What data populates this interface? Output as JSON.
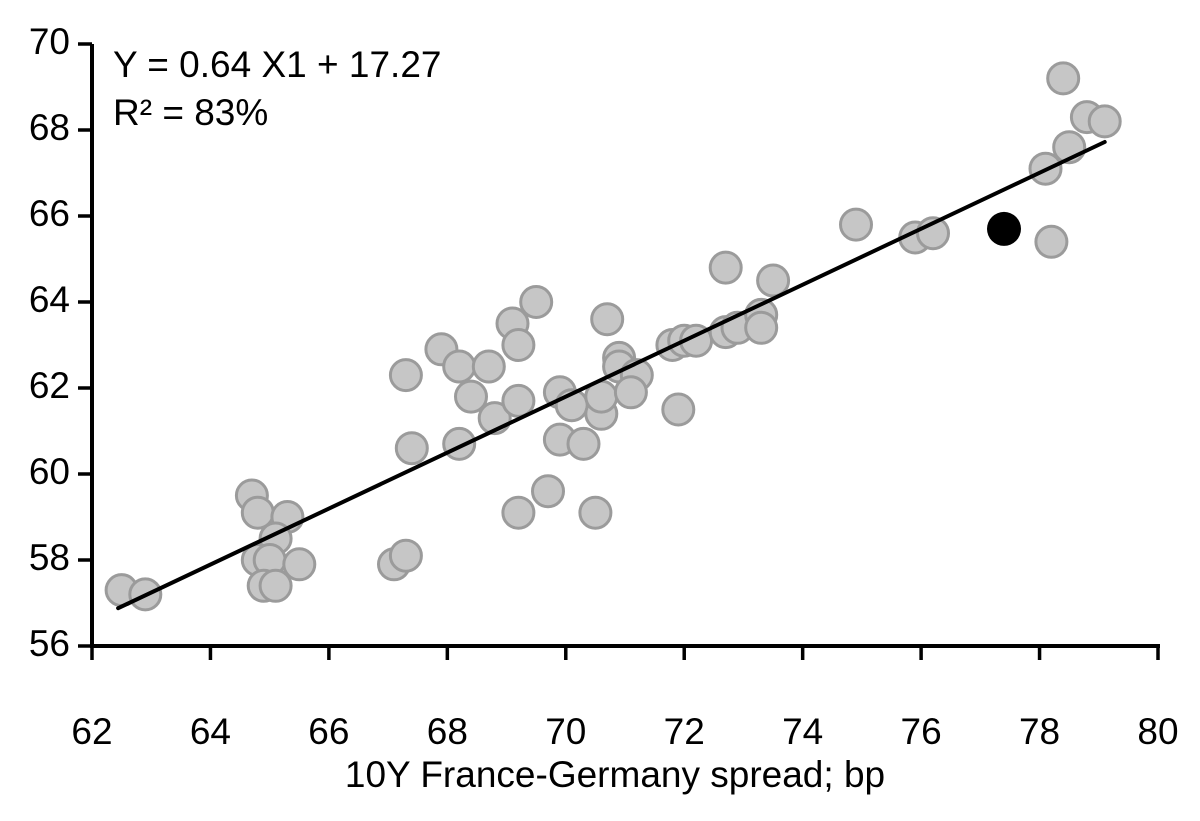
{
  "colors": {
    "background": "#ffffff",
    "axis": "#000000",
    "text": "#000000",
    "trendline": "#000000",
    "point_fill": "#c6c6c6",
    "point_edge": "#9b9b9b",
    "highlight_point": "#000000"
  },
  "chart_data": {
    "type": "scatter",
    "title": "",
    "xlabel": "10Y France-Germany spread; bp",
    "ylabel": "",
    "xlim": [
      62,
      80
    ],
    "ylim": [
      56,
      70
    ],
    "xticks": [
      62,
      64,
      66,
      68,
      70,
      72,
      74,
      76,
      78,
      80
    ],
    "yticks": [
      56,
      58,
      60,
      62,
      64,
      66,
      68,
      70
    ],
    "grid": false,
    "legend": "none",
    "annotation_line1": "Y = 0.64 X1 + 17.27",
    "annotation_line2": "R² = 83%",
    "regression": {
      "equation": "Y = 0.64 X1 + 17.27",
      "slope": 0.64,
      "intercept": 17.27,
      "r_squared_pct": 83
    },
    "trendline_draw": {
      "x1": 62.44,
      "y1": 56.88,
      "x2": 79.1,
      "y2": 67.72
    },
    "series": [
      {
        "name": "observations",
        "marker": "circle",
        "fill": "#c6c6c6",
        "edge": "#9b9b9b",
        "points": [
          [
            62.5,
            57.3
          ],
          [
            62.9,
            57.2
          ],
          [
            64.7,
            59.5
          ],
          [
            64.8,
            59.1
          ],
          [
            65.3,
            59.0
          ],
          [
            65.1,
            58.5
          ],
          [
            64.8,
            58.0
          ],
          [
            65.0,
            58.0
          ],
          [
            65.5,
            57.9
          ],
          [
            64.9,
            57.4
          ],
          [
            65.1,
            57.4
          ],
          [
            67.1,
            57.9
          ],
          [
            67.3,
            58.1
          ],
          [
            67.3,
            62.3
          ],
          [
            67.4,
            60.6
          ],
          [
            67.9,
            62.9
          ],
          [
            68.2,
            62.5
          ],
          [
            68.7,
            62.5
          ],
          [
            68.4,
            61.8
          ],
          [
            68.2,
            60.7
          ],
          [
            68.8,
            61.3
          ],
          [
            69.2,
            61.7
          ],
          [
            69.1,
            63.5
          ],
          [
            69.5,
            64.0
          ],
          [
            69.2,
            63.0
          ],
          [
            69.7,
            59.6
          ],
          [
            69.2,
            59.1
          ],
          [
            70.5,
            59.1
          ],
          [
            69.9,
            60.8
          ],
          [
            70.3,
            60.7
          ],
          [
            69.9,
            61.9
          ],
          [
            70.1,
            61.6
          ],
          [
            70.6,
            61.4
          ],
          [
            70.6,
            61.8
          ],
          [
            70.7,
            63.6
          ],
          [
            70.9,
            62.7
          ],
          [
            70.9,
            62.5
          ],
          [
            71.2,
            62.3
          ],
          [
            71.1,
            61.9
          ],
          [
            71.9,
            61.5
          ],
          [
            71.8,
            63.0
          ],
          [
            72.0,
            63.1
          ],
          [
            72.2,
            63.1
          ],
          [
            72.7,
            63.3
          ],
          [
            72.9,
            63.4
          ],
          [
            73.3,
            63.7
          ],
          [
            73.3,
            63.4
          ],
          [
            72.7,
            64.8
          ],
          [
            73.5,
            64.5
          ],
          [
            74.9,
            65.8
          ],
          [
            75.9,
            65.5
          ],
          [
            76.2,
            65.6
          ],
          [
            78.4,
            69.2
          ],
          [
            78.8,
            68.3
          ],
          [
            79.1,
            68.2
          ],
          [
            78.5,
            67.6
          ],
          [
            78.1,
            67.1
          ],
          [
            78.2,
            65.4
          ]
        ]
      },
      {
        "name": "latest observation",
        "marker": "circle",
        "fill": "#000000",
        "edge": "#000000",
        "points": [
          [
            77.4,
            65.7
          ]
        ]
      }
    ]
  }
}
